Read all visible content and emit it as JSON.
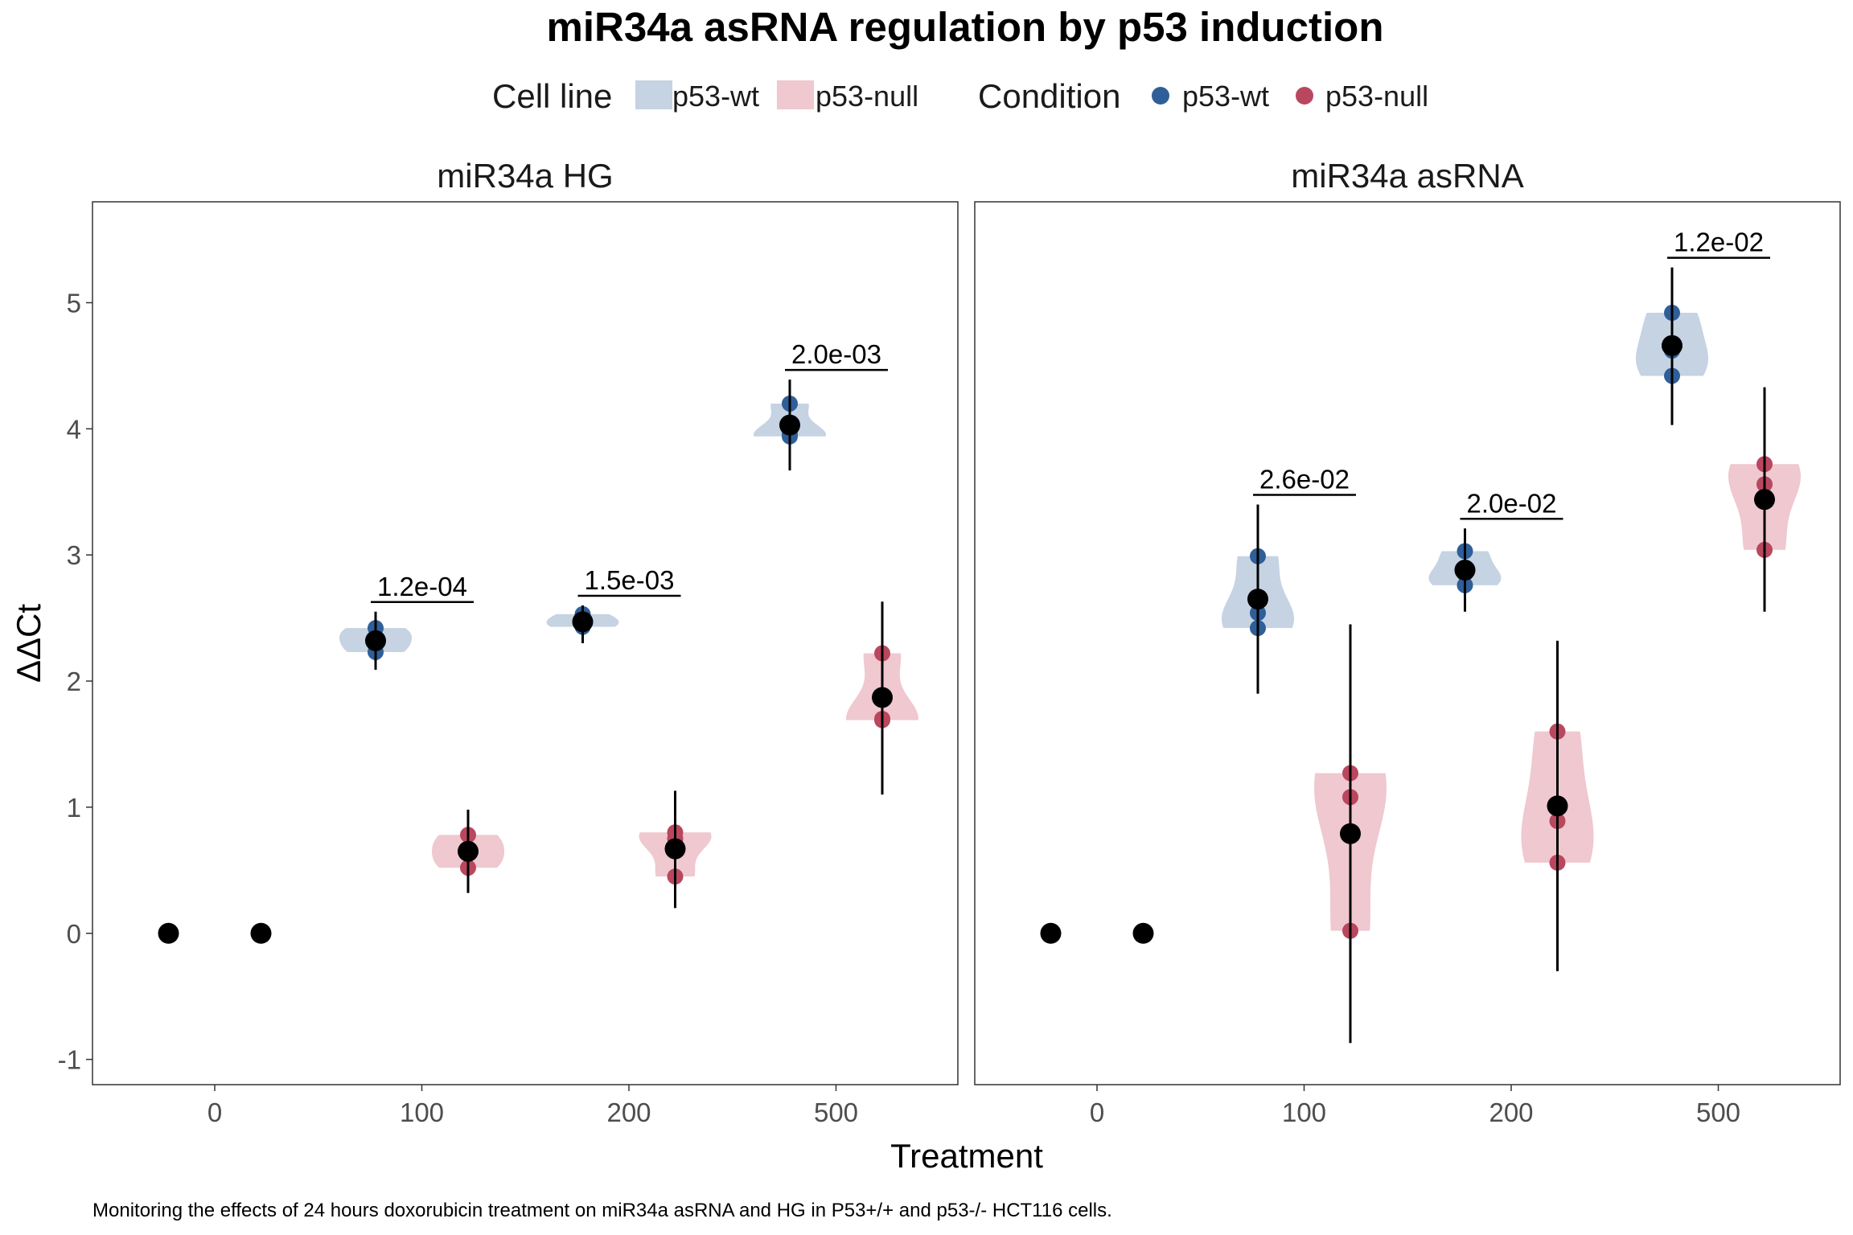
{
  "title": "miR34a asRNA regulation by p53 induction",
  "caption": "Monitoring the effects of 24 hours doxorubicin treatment on miR34a asRNA and HG in P53+/+ and p53-/- HCT116 cells.",
  "legend": {
    "cell_line_title": "Cell line",
    "condition_title": "Condition",
    "items": [
      "p53-wt",
      "p53-null"
    ]
  },
  "colors": {
    "wt_point": "#2f5f98",
    "null_point": "#b9475e",
    "wt_fill": "#c5d3e3",
    "null_fill": "#efc8d0",
    "mean_point": "#000000"
  },
  "chart_data": {
    "type": "scatter",
    "xlabel": "Treatment",
    "ylabel": "ΔΔCt",
    "categories": [
      "0",
      "100",
      "200",
      "500"
    ],
    "ylim": [
      -1.2,
      5.8
    ],
    "yticks": [
      -1,
      0,
      1,
      2,
      3,
      4,
      5
    ],
    "grid": false,
    "legend_position": "top",
    "panels": [
      {
        "name": "miR34a HG",
        "groups": [
          {
            "category": "0",
            "series": "p53-wt",
            "points": [
              0,
              0,
              0
            ],
            "mean": 0
          },
          {
            "category": "0",
            "series": "p53-null",
            "points": [
              0,
              0,
              0
            ],
            "mean": 0
          },
          {
            "category": "100",
            "series": "p53-wt",
            "points": [
              2.23,
              2.33,
              2.42
            ],
            "mean": 2.32,
            "ci": [
              2.09,
              2.55
            ],
            "pvalue": "1.2e-04"
          },
          {
            "category": "100",
            "series": "p53-null",
            "points": [
              0.52,
              0.65,
              0.78
            ],
            "mean": 0.65,
            "ci": [
              0.32,
              0.98
            ]
          },
          {
            "category": "200",
            "series": "p53-wt",
            "points": [
              2.43,
              2.46,
              2.53
            ],
            "mean": 2.47,
            "ci": [
              2.3,
              2.6
            ],
            "pvalue": "1.5e-03"
          },
          {
            "category": "200",
            "series": "p53-null",
            "points": [
              0.45,
              0.75,
              0.8
            ],
            "mean": 0.67,
            "ci": [
              0.2,
              1.13
            ]
          },
          {
            "category": "500",
            "series": "p53-wt",
            "points": [
              3.94,
              3.96,
              4.2
            ],
            "mean": 4.03,
            "ci": [
              3.67,
              4.39
            ],
            "pvalue": "2.0e-03"
          },
          {
            "category": "500",
            "series": "p53-null",
            "points": [
              1.69,
              1.7,
              2.22
            ],
            "mean": 1.87,
            "ci": [
              1.1,
              2.63
            ]
          }
        ]
      },
      {
        "name": "miR34a asRNA",
        "groups": [
          {
            "category": "0",
            "series": "p53-wt",
            "points": [
              0,
              0,
              0
            ],
            "mean": 0
          },
          {
            "category": "0",
            "series": "p53-null",
            "points": [
              0,
              0,
              0
            ],
            "mean": 0
          },
          {
            "category": "100",
            "series": "p53-wt",
            "points": [
              2.42,
              2.54,
              2.99
            ],
            "mean": 2.65,
            "ci": [
              1.9,
              3.4
            ],
            "pvalue": "2.6e-02"
          },
          {
            "category": "100",
            "series": "p53-null",
            "points": [
              0.02,
              1.08,
              1.27
            ],
            "mean": 0.79,
            "ci": [
              -0.87,
              2.45
            ]
          },
          {
            "category": "200",
            "series": "p53-wt",
            "points": [
              2.76,
              2.85,
              3.03
            ],
            "mean": 2.88,
            "ci": [
              2.55,
              3.21
            ],
            "pvalue": "2.0e-02"
          },
          {
            "category": "200",
            "series": "p53-null",
            "points": [
              0.56,
              0.89,
              1.6
            ],
            "mean": 1.01,
            "ci": [
              -0.3,
              2.32
            ]
          },
          {
            "category": "500",
            "series": "p53-wt",
            "points": [
              4.42,
              4.62,
              4.92
            ],
            "mean": 4.66,
            "ci": [
              4.03,
              5.28
            ],
            "pvalue": "1.2e-02"
          },
          {
            "category": "500",
            "series": "p53-null",
            "points": [
              3.04,
              3.56,
              3.72
            ],
            "mean": 3.44,
            "ci": [
              2.55,
              4.33
            ]
          }
        ]
      }
    ]
  }
}
